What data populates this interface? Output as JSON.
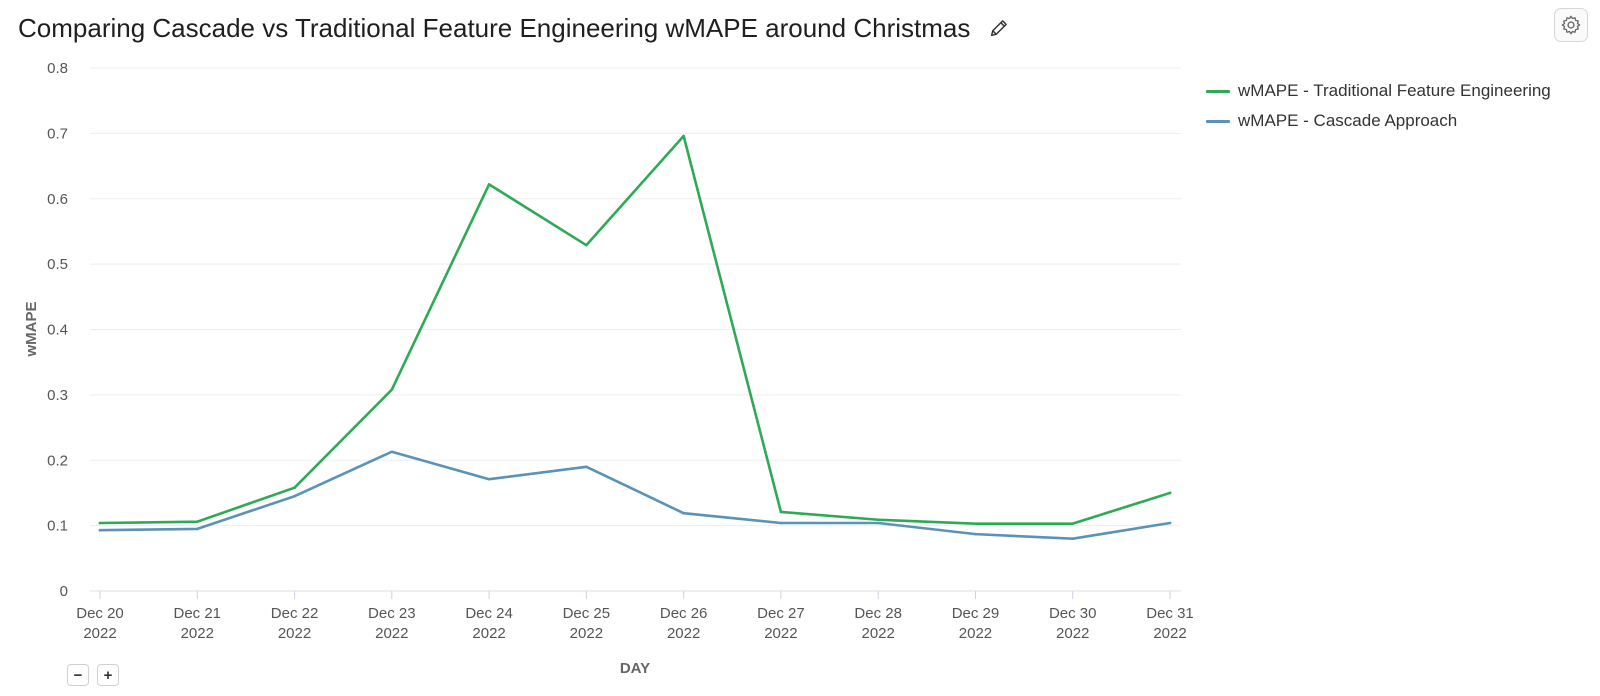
{
  "header": {
    "title": "Comparing Cascade vs Traditional Feature Engineering wMAPE around Christmas",
    "edit_icon": "pencil-icon",
    "settings_icon": "gear-icon"
  },
  "zoom": {
    "zoom_out_label": "−",
    "zoom_in_label": "+"
  },
  "chart_data": {
    "type": "line",
    "title": "Comparing Cascade vs Traditional Feature Engineering wMAPE around Christmas",
    "xlabel": "DAY",
    "ylabel": "wMAPE",
    "ylim": [
      0,
      0.8
    ],
    "yticks": [
      "0",
      "0.1",
      "0.2",
      "0.3",
      "0.4",
      "0.5",
      "0.6",
      "0.7",
      "0.8"
    ],
    "grid": true,
    "legend_position": "top-right",
    "categories": [
      [
        "Dec 20",
        "2022"
      ],
      [
        "Dec 21",
        "2022"
      ],
      [
        "Dec 22",
        "2022"
      ],
      [
        "Dec 23",
        "2022"
      ],
      [
        "Dec 24",
        "2022"
      ],
      [
        "Dec 25",
        "2022"
      ],
      [
        "Dec 26",
        "2022"
      ],
      [
        "Dec 27",
        "2022"
      ],
      [
        "Dec 28",
        "2022"
      ],
      [
        "Dec 29",
        "2022"
      ],
      [
        "Dec 30",
        "2022"
      ],
      [
        "Dec 31",
        "2022"
      ]
    ],
    "series": [
      {
        "name": "wMAPE - Traditional Feature Engineering",
        "color": "#2eaa55",
        "values": [
          0.104,
          0.106,
          0.158,
          0.308,
          0.622,
          0.529,
          0.696,
          0.121,
          0.109,
          0.103,
          0.103,
          0.15
        ]
      },
      {
        "name": "wMAPE - Cascade Approach",
        "color": "#5b92b8",
        "values": [
          0.093,
          0.095,
          0.145,
          0.213,
          0.171,
          0.19,
          0.119,
          0.104,
          0.104,
          0.087,
          0.08,
          0.104
        ]
      }
    ]
  }
}
